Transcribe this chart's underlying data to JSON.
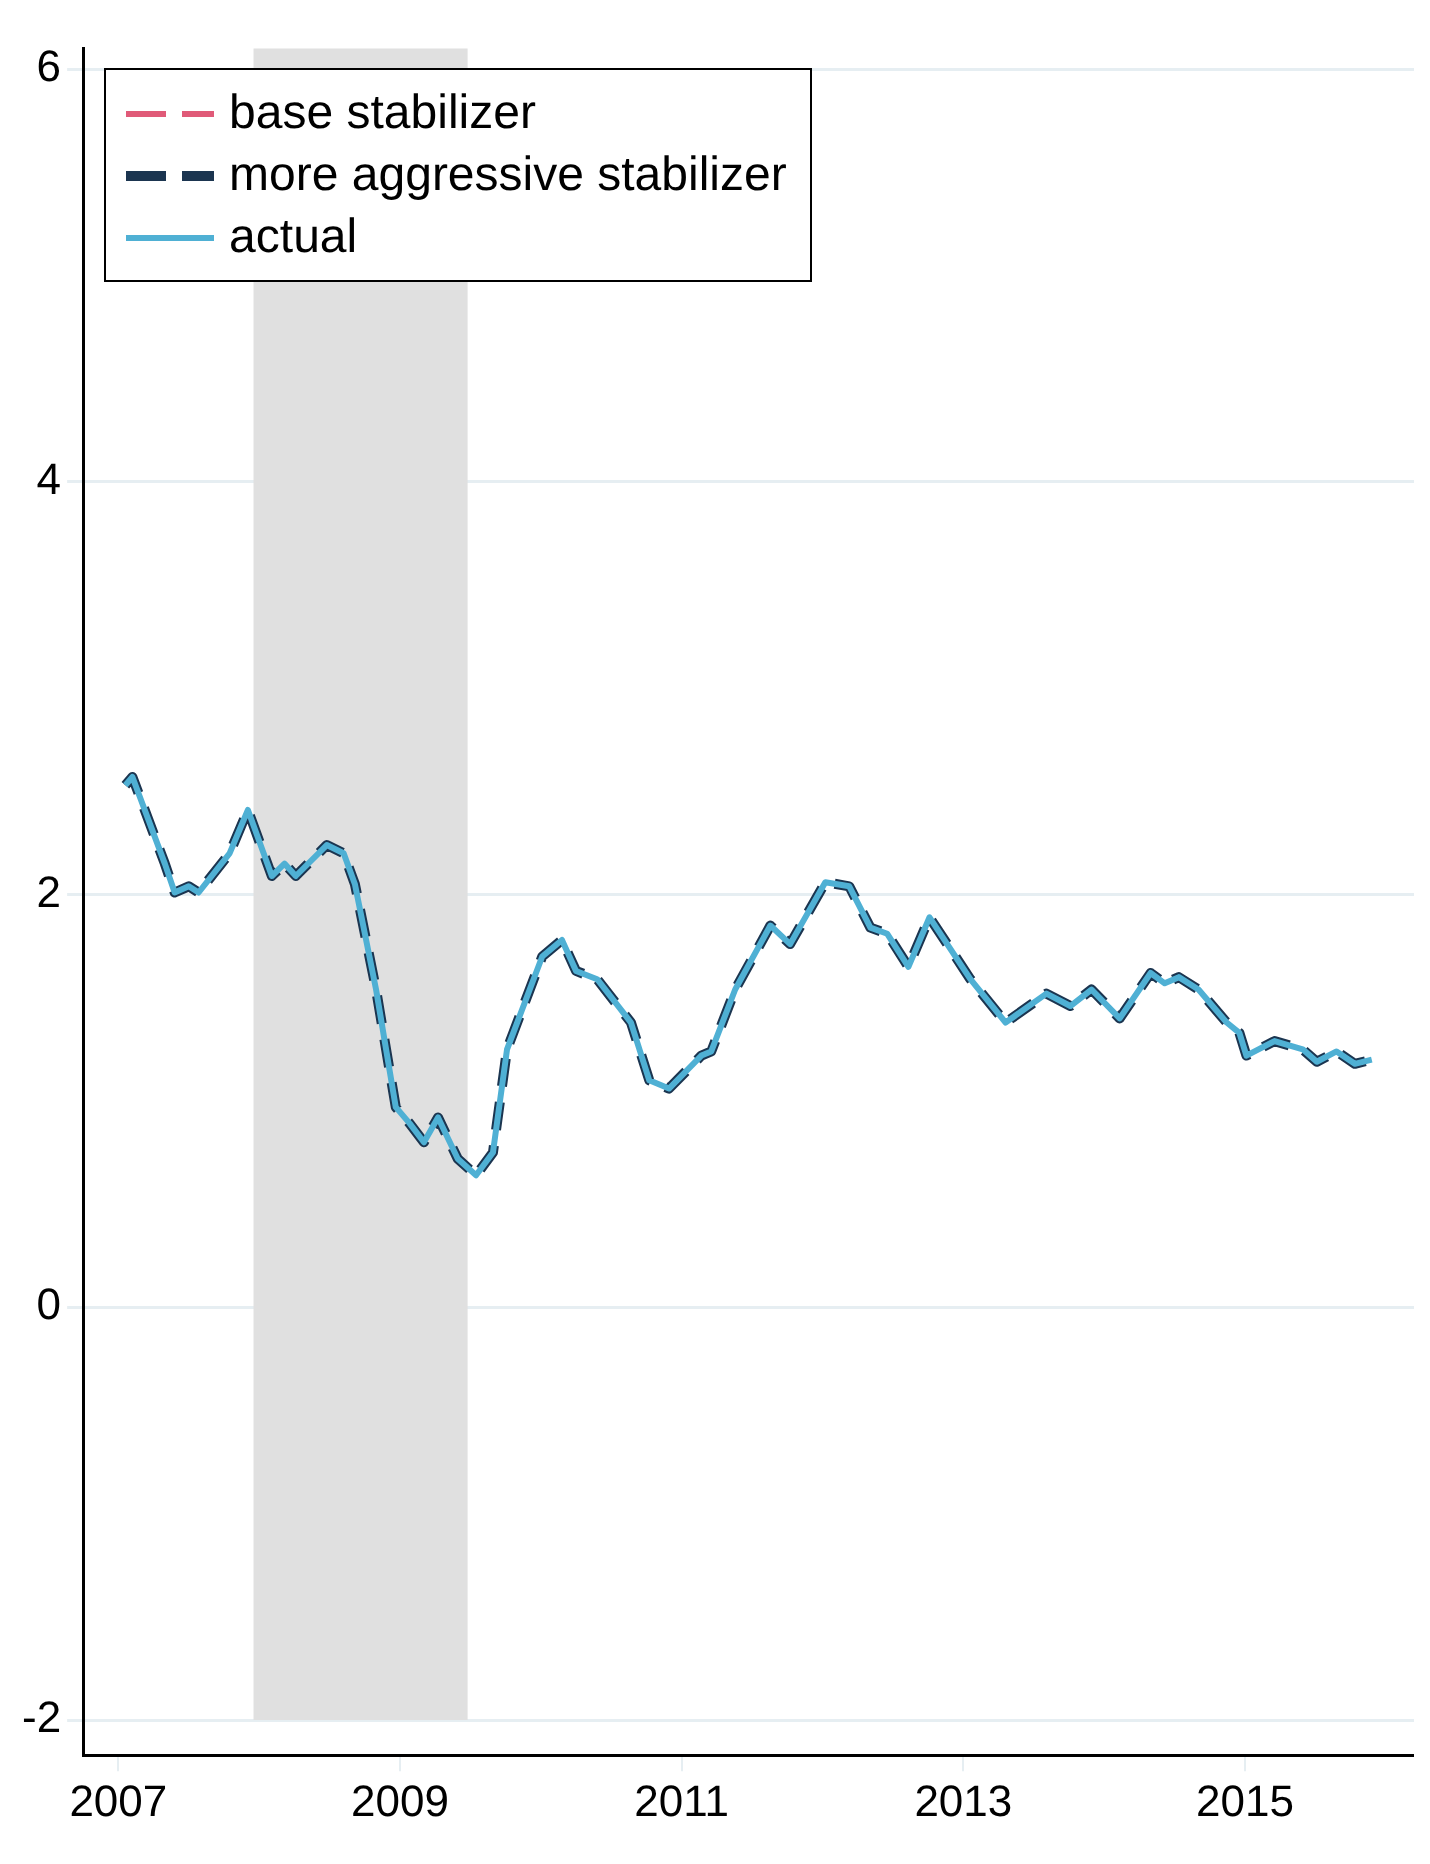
{
  "chart_data": {
    "type": "line",
    "x": [
      2007.05,
      2007.1,
      2007.33,
      2007.4,
      2007.5,
      2007.57,
      2007.79,
      2007.92,
      2008.09,
      2008.18,
      2008.26,
      2008.48,
      2008.6,
      2008.68,
      2008.83,
      2008.97,
      2009.07,
      2009.17,
      2009.27,
      2009.41,
      2009.54,
      2009.66,
      2009.76,
      2010.01,
      2010.15,
      2010.25,
      2010.4,
      2010.64,
      2010.77,
      2010.91,
      2011.14,
      2011.21,
      2011.38,
      2011.63,
      2011.77,
      2012.02,
      2012.19,
      2012.34,
      2012.46,
      2012.61,
      2012.76,
      2013.05,
      2013.3,
      2013.59,
      2013.76,
      2013.91,
      2014.11,
      2014.33,
      2014.43,
      2014.53,
      2014.67,
      2014.87,
      2014.96,
      2015.01,
      2015.21,
      2015.41,
      2015.51,
      2015.65,
      2015.78,
      2015.9
    ],
    "series": [
      {
        "name": "base stabilizer",
        "color": "#e05a78",
        "line_style": "dashed",
        "values": [
          null,
          null,
          null,
          null,
          null,
          null,
          null,
          null,
          null,
          null,
          null,
          null,
          null,
          null,
          null,
          null,
          null,
          null,
          null,
          null,
          null,
          null,
          null,
          null,
          null,
          null,
          null,
          null,
          null,
          null,
          null,
          null,
          null,
          null,
          null,
          null,
          null,
          null,
          null,
          null,
          null,
          null,
          null,
          null,
          null,
          null,
          null,
          null,
          null,
          null,
          null,
          null,
          null,
          null,
          null,
          null,
          null,
          null,
          null,
          null
        ]
      },
      {
        "name": "more aggressive stabilizer",
        "color": "#1b3550",
        "line_style": "dashed",
        "values": [
          2.53,
          2.57,
          2.15,
          2.01,
          2.04,
          2.01,
          2.2,
          2.41,
          2.09,
          2.15,
          2.09,
          2.24,
          2.2,
          2.05,
          1.54,
          0.97,
          0.89,
          0.8,
          0.92,
          0.72,
          0.64,
          0.75,
          1.25,
          1.7,
          1.78,
          1.63,
          1.59,
          1.38,
          1.1,
          1.06,
          1.22,
          1.24,
          1.54,
          1.85,
          1.76,
          2.06,
          2.04,
          1.84,
          1.81,
          1.65,
          1.89,
          1.59,
          1.38,
          1.52,
          1.46,
          1.54,
          1.4,
          1.62,
          1.57,
          1.6,
          1.54,
          1.38,
          1.33,
          1.22,
          1.29,
          1.25,
          1.19,
          1.24,
          1.18,
          1.2
        ]
      },
      {
        "name": "actual",
        "color": "#4fb0d4",
        "line_style": "solid",
        "values": [
          2.53,
          2.57,
          2.15,
          2.01,
          2.04,
          2.01,
          2.2,
          2.41,
          2.09,
          2.15,
          2.09,
          2.24,
          2.2,
          2.05,
          1.54,
          0.97,
          0.89,
          0.8,
          0.92,
          0.72,
          0.64,
          0.75,
          1.25,
          1.7,
          1.78,
          1.63,
          1.59,
          1.38,
          1.1,
          1.06,
          1.22,
          1.24,
          1.54,
          1.85,
          1.76,
          2.06,
          2.04,
          1.84,
          1.81,
          1.65,
          1.89,
          1.59,
          1.38,
          1.52,
          1.46,
          1.54,
          1.4,
          1.62,
          1.57,
          1.6,
          1.54,
          1.38,
          1.33,
          1.22,
          1.29,
          1.25,
          1.19,
          1.24,
          1.18,
          1.2
        ]
      }
    ],
    "xlim": [
      2006.75,
      2016.2
    ],
    "xticks": [
      2007,
      2009,
      2011,
      2013,
      2015
    ],
    "ylim": [
      -2.17,
      6.1
    ],
    "yticks": [
      -2,
      0,
      2,
      4,
      6
    ],
    "bands": [
      {
        "axis": "x",
        "from": 2007.96,
        "to": 2009.48,
        "color": "#e0e0e0"
      }
    ],
    "grid": "y",
    "legend": "top left",
    "marker": "none"
  }
}
